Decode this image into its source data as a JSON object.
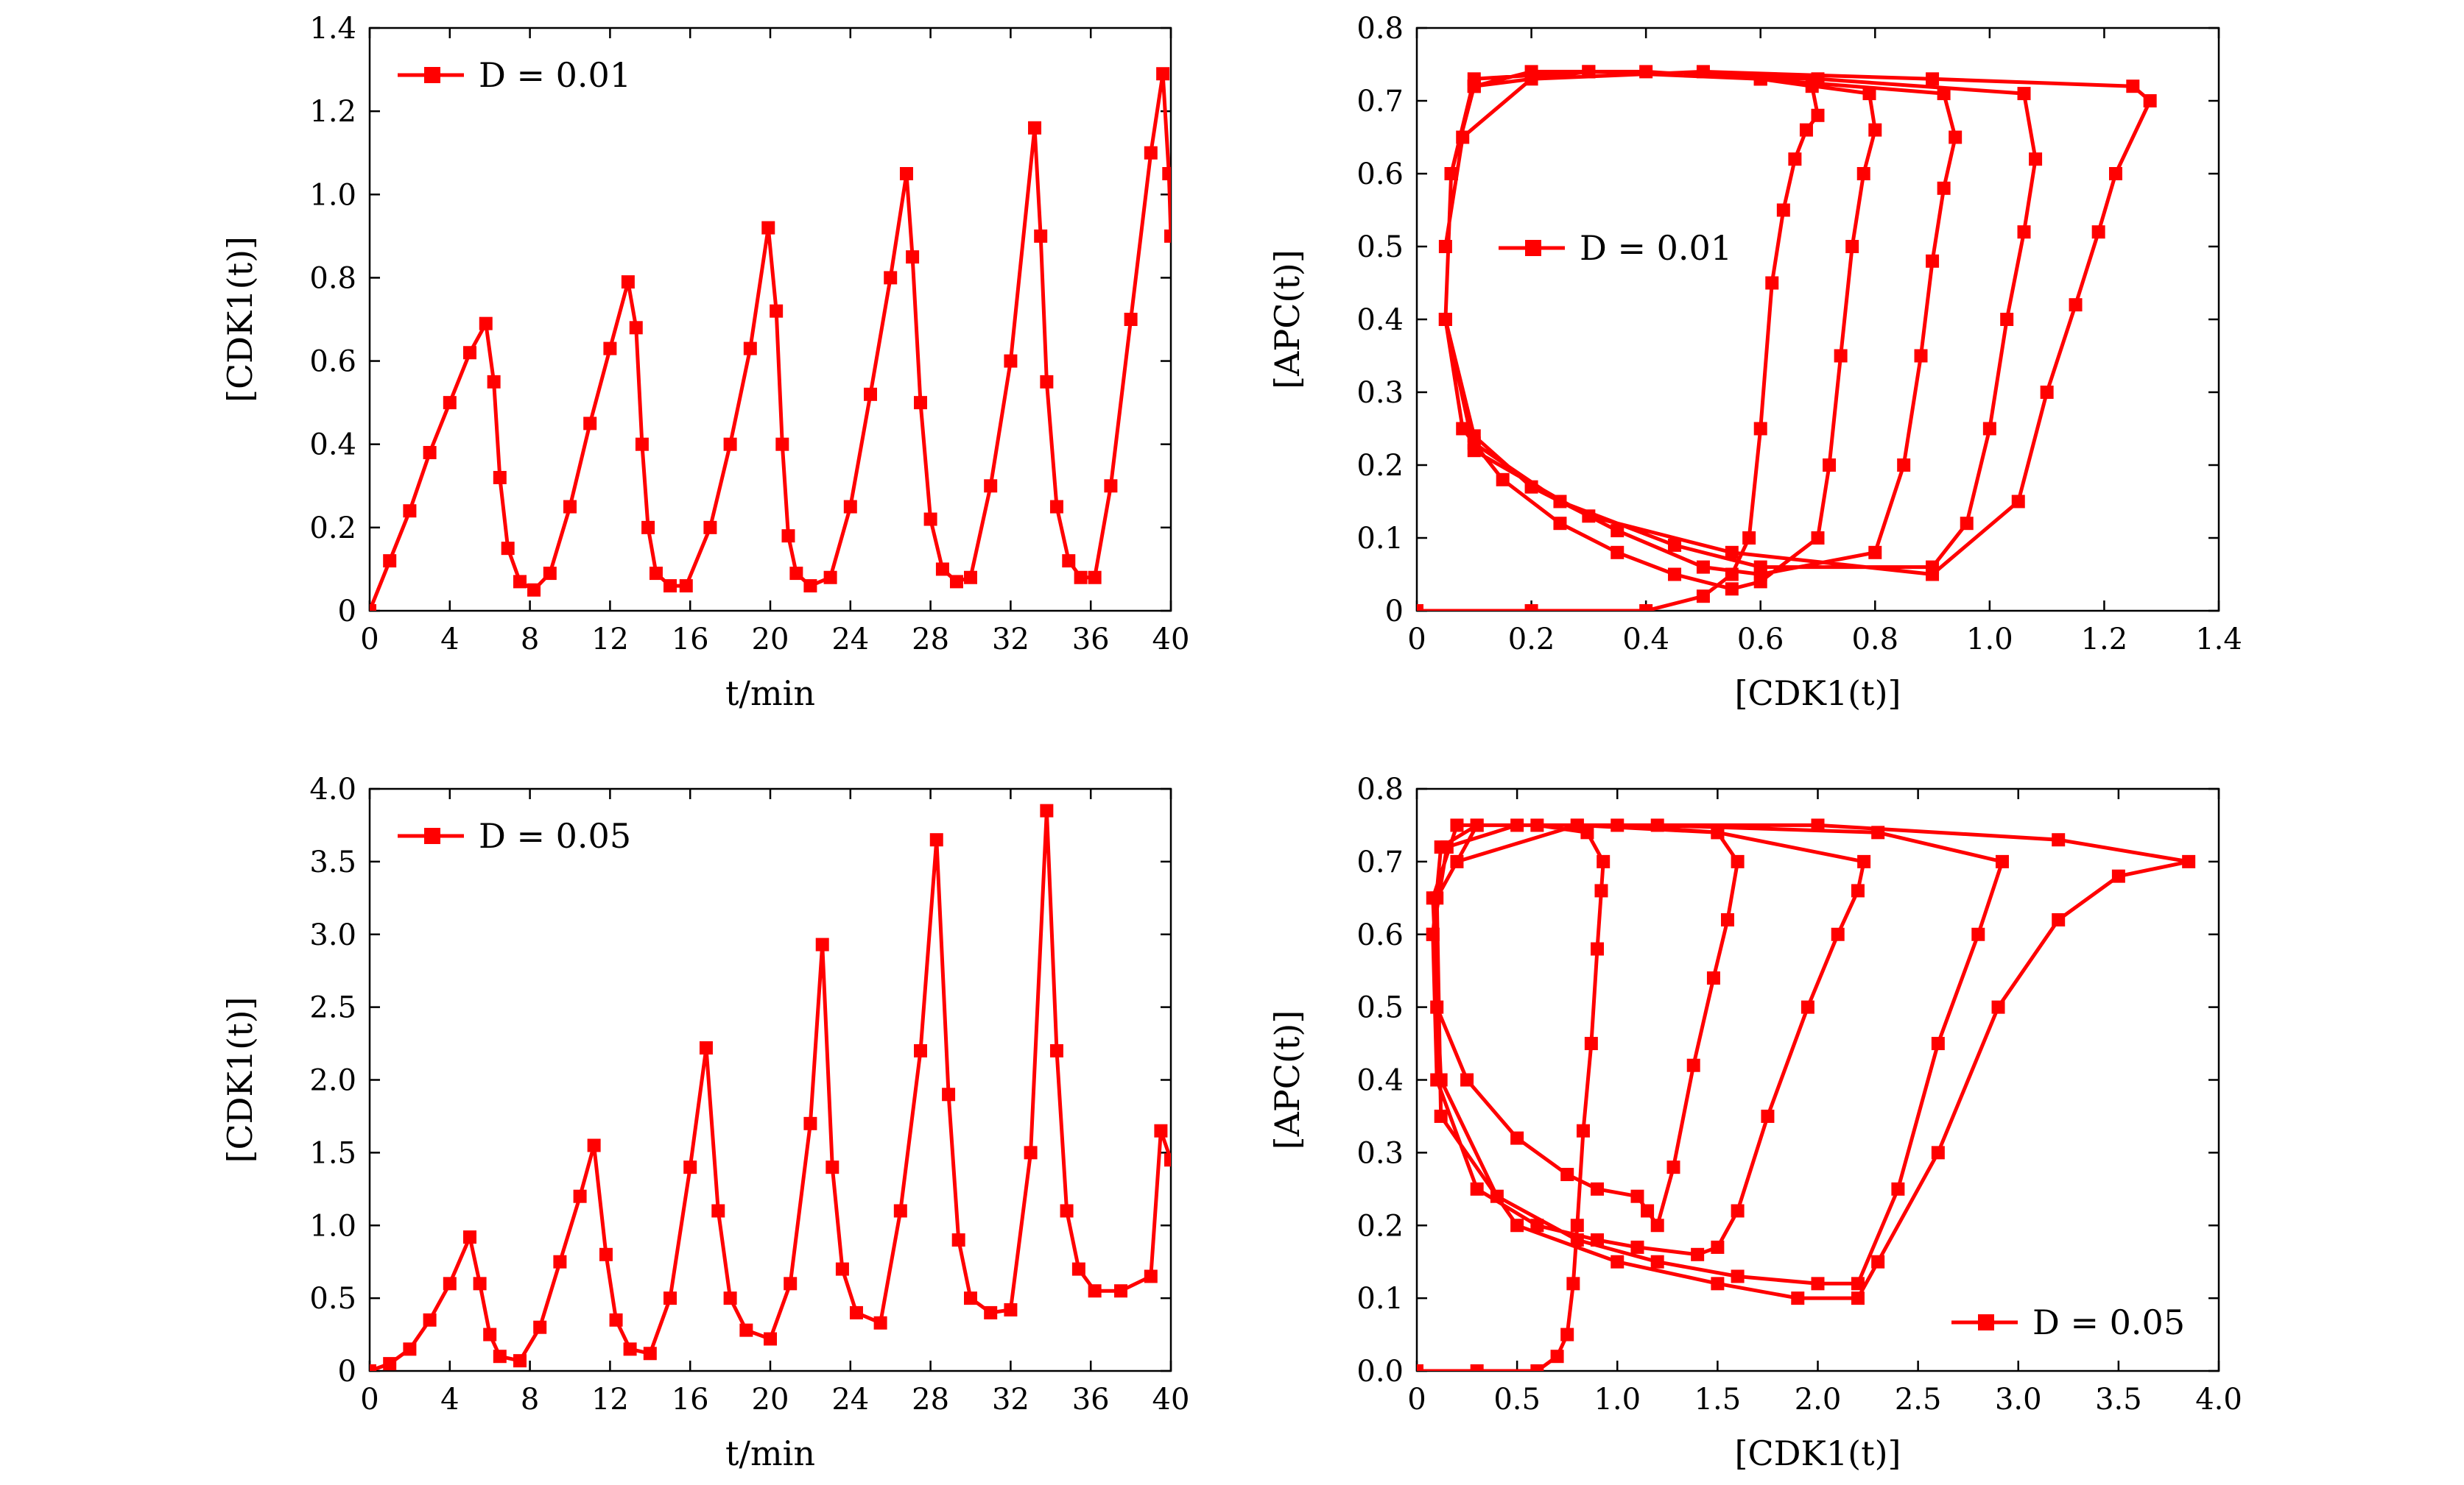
{
  "chart_data": [
    {
      "id": "p1",
      "type": "line",
      "xlabel": "t/min",
      "ylabel": "[CDK1(t)]",
      "xlim": [
        0,
        40
      ],
      "ylim": [
        0,
        1.4
      ],
      "xticks": [
        0,
        4,
        8,
        12,
        16,
        20,
        24,
        28,
        32,
        36,
        40
      ],
      "yticks": [
        0,
        0.2,
        0.4,
        0.6,
        0.8,
        1.0,
        1.2,
        1.4
      ],
      "xtick_labels": [
        "0",
        "4",
        "8",
        "12",
        "16",
        "20",
        "24",
        "28",
        "32",
        "36",
        "40"
      ],
      "ytick_labels": [
        "0",
        "0.2",
        "0.4",
        "0.6",
        "0.8",
        "1.0",
        "1.2",
        "1.4"
      ],
      "legend": {
        "label": "D = 0.01",
        "position": "top-left"
      },
      "series": [
        {
          "name": "D = 0.01",
          "x": [
            0,
            1,
            2,
            3,
            4,
            5,
            5.8,
            6.2,
            6.5,
            6.9,
            7.5,
            8.2,
            9,
            10,
            11,
            12,
            12.9,
            13.3,
            13.6,
            13.9,
            14.3,
            15,
            15.8,
            17,
            18,
            19,
            19.9,
            20.3,
            20.6,
            20.9,
            21.3,
            22,
            23,
            24,
            25,
            26,
            26.8,
            27.1,
            27.5,
            28,
            28.6,
            29.3,
            30,
            31,
            32,
            33.2,
            33.5,
            33.8,
            34.3,
            34.9,
            35.5,
            36.2,
            37,
            38,
            39,
            39.6,
            39.9,
            40
          ],
          "values": [
            0,
            0.12,
            0.24,
            0.38,
            0.5,
            0.62,
            0.69,
            0.55,
            0.32,
            0.15,
            0.07,
            0.05,
            0.09,
            0.25,
            0.45,
            0.63,
            0.79,
            0.68,
            0.4,
            0.2,
            0.09,
            0.06,
            0.06,
            0.2,
            0.4,
            0.63,
            0.92,
            0.72,
            0.4,
            0.18,
            0.09,
            0.06,
            0.08,
            0.25,
            0.52,
            0.8,
            1.05,
            0.85,
            0.5,
            0.22,
            0.1,
            0.07,
            0.08,
            0.3,
            0.6,
            1.16,
            0.9,
            0.55,
            0.25,
            0.12,
            0.08,
            0.08,
            0.3,
            0.7,
            1.1,
            1.29,
            1.05,
            0.9
          ]
        }
      ]
    },
    {
      "id": "p2",
      "type": "line",
      "xlabel": "[CDK1(t)]",
      "ylabel": "[APC(t)]",
      "xlim": [
        0,
        1.4
      ],
      "ylim": [
        0,
        0.8
      ],
      "xticks": [
        0,
        0.2,
        0.4,
        0.6,
        0.8,
        1.0,
        1.2,
        1.4
      ],
      "yticks": [
        0,
        0.1,
        0.2,
        0.3,
        0.4,
        0.5,
        0.6,
        0.7,
        0.8
      ],
      "xtick_labels": [
        "0",
        "0.2",
        "0.4",
        "0.6",
        "0.8",
        "1.0",
        "1.2",
        "1.4"
      ],
      "ytick_labels": [
        "0",
        "0.1",
        "0.2",
        "0.3",
        "0.4",
        "0.5",
        "0.6",
        "0.7",
        "0.8"
      ],
      "legend": {
        "label": "D = 0.01",
        "position": "middle-left"
      },
      "series": [
        {
          "name": "D = 0.01",
          "x": [
            0,
            0.2,
            0.4,
            0.5,
            0.55,
            0.58,
            0.6,
            0.62,
            0.64,
            0.66,
            0.68,
            0.7,
            0.69,
            0.6,
            0.4,
            0.2,
            0.1,
            0.06,
            0.05,
            0.08,
            0.15,
            0.25,
            0.35,
            0.45,
            0.55,
            0.6,
            0.7,
            0.72,
            0.74,
            0.76,
            0.78,
            0.8,
            0.79,
            0.6,
            0.3,
            0.1,
            0.06,
            0.05,
            0.1,
            0.2,
            0.35,
            0.5,
            0.6,
            0.8,
            0.85,
            0.88,
            0.9,
            0.92,
            0.94,
            0.92,
            0.6,
            0.3,
            0.1,
            0.06,
            0.05,
            0.1,
            0.25,
            0.45,
            0.6,
            0.9,
            0.96,
            1.0,
            1.03,
            1.06,
            1.08,
            1.06,
            0.7,
            0.3,
            0.1,
            0.06,
            0.05,
            0.1,
            0.3,
            0.55,
            0.9,
            1.05,
            1.1,
            1.15,
            1.19,
            1.22,
            1.28,
            1.25,
            0.9,
            0.5,
            0.2,
            0.08,
            0.05
          ],
          "values": [
            0,
            0,
            0,
            0.02,
            0.05,
            0.1,
            0.25,
            0.45,
            0.55,
            0.62,
            0.66,
            0.68,
            0.72,
            0.73,
            0.74,
            0.74,
            0.72,
            0.6,
            0.4,
            0.25,
            0.18,
            0.12,
            0.08,
            0.05,
            0.03,
            0.04,
            0.1,
            0.2,
            0.35,
            0.5,
            0.6,
            0.66,
            0.71,
            0.73,
            0.74,
            0.73,
            0.6,
            0.4,
            0.24,
            0.17,
            0.11,
            0.06,
            0.05,
            0.08,
            0.2,
            0.35,
            0.48,
            0.58,
            0.65,
            0.71,
            0.73,
            0.74,
            0.72,
            0.6,
            0.4,
            0.23,
            0.15,
            0.09,
            0.06,
            0.06,
            0.12,
            0.25,
            0.4,
            0.52,
            0.62,
            0.71,
            0.73,
            0.74,
            0.72,
            0.6,
            0.4,
            0.22,
            0.13,
            0.08,
            0.05,
            0.15,
            0.3,
            0.42,
            0.52,
            0.6,
            0.7,
            0.72,
            0.73,
            0.74,
            0.73,
            0.65,
            0.5
          ]
        }
      ]
    },
    {
      "id": "p3",
      "type": "line",
      "xlabel": "t/min",
      "ylabel": "[CDK1(t)]",
      "xlim": [
        0,
        40
      ],
      "ylim": [
        0,
        4.0
      ],
      "xticks": [
        0,
        4,
        8,
        12,
        16,
        20,
        24,
        28,
        32,
        36,
        40
      ],
      "yticks": [
        0,
        0.5,
        1.0,
        1.5,
        2.0,
        2.5,
        3.0,
        3.5,
        4.0
      ],
      "xtick_labels": [
        "0",
        "4",
        "8",
        "12",
        "16",
        "20",
        "24",
        "28",
        "32",
        "36",
        "40"
      ],
      "ytick_labels": [
        "0",
        "0.5",
        "1.0",
        "1.5",
        "2.0",
        "2.5",
        "3.0",
        "3.5",
        "4.0"
      ],
      "legend": {
        "label": "D = 0.05",
        "position": "top-left"
      },
      "series": [
        {
          "name": "D = 0.05",
          "x": [
            0,
            1,
            2,
            3,
            4,
            5,
            5.5,
            6,
            6.5,
            7.5,
            8.5,
            9.5,
            10.5,
            11.2,
            11.8,
            12.3,
            13,
            14,
            15,
            16,
            16.8,
            17.4,
            18,
            18.8,
            20,
            21,
            22,
            22.6,
            23.1,
            23.6,
            24.3,
            25.5,
            26.5,
            27.5,
            28.3,
            28.9,
            29.4,
            30,
            31,
            32,
            33,
            33.8,
            34.3,
            34.8,
            35.4,
            36.2,
            37.5,
            39,
            39.5,
            40
          ],
          "values": [
            0,
            0.05,
            0.15,
            0.35,
            0.6,
            0.92,
            0.6,
            0.25,
            0.1,
            0.07,
            0.3,
            0.75,
            1.2,
            1.55,
            0.8,
            0.35,
            0.15,
            0.12,
            0.5,
            1.4,
            2.22,
            1.1,
            0.5,
            0.28,
            0.22,
            0.6,
            1.7,
            2.93,
            1.4,
            0.7,
            0.4,
            0.33,
            1.1,
            2.2,
            3.65,
            1.9,
            0.9,
            0.5,
            0.4,
            0.42,
            1.5,
            3.85,
            2.2,
            1.1,
            0.7,
            0.55,
            0.55,
            0.65,
            1.65,
            1.45
          ]
        }
      ]
    },
    {
      "id": "p4",
      "type": "line",
      "xlabel": "[CDK1(t)]",
      "ylabel": "[APC(t)]",
      "xlim": [
        0,
        4.0
      ],
      "ylim": [
        0,
        0.8
      ],
      "xticks": [
        0,
        0.5,
        1.0,
        1.5,
        2.0,
        2.5,
        3.0,
        3.5,
        4.0
      ],
      "yticks": [
        0,
        0.1,
        0.2,
        0.3,
        0.4,
        0.5,
        0.6,
        0.7,
        0.8
      ],
      "xtick_labels": [
        "0",
        "0.5",
        "1.0",
        "1.5",
        "2.0",
        "2.5",
        "3.0",
        "3.5",
        "4.0"
      ],
      "ytick_labels": [
        "0.0",
        "0.1",
        "0.2",
        "0.3",
        "0.4",
        "0.5",
        "0.6",
        "0.7",
        "0.8"
      ],
      "legend": {
        "label": "D = 0.05",
        "position": "bottom-right"
      },
      "series": [
        {
          "name": "D = 0.05",
          "x": [
            0,
            0.3,
            0.6,
            0.7,
            0.75,
            0.78,
            0.8,
            0.83,
            0.87,
            0.9,
            0.92,
            0.93,
            0.85,
            0.6,
            0.3,
            0.12,
            0.08,
            0.1,
            0.25,
            0.5,
            0.75,
            0.9,
            1.1,
            1.15,
            1.2,
            1.28,
            1.38,
            1.48,
            1.55,
            1.6,
            1.5,
            1.0,
            0.5,
            0.15,
            0.08,
            0.1,
            0.3,
            0.6,
            0.9,
            1.1,
            1.4,
            1.5,
            1.6,
            1.75,
            1.95,
            2.1,
            2.2,
            2.23,
            1.5,
            0.8,
            0.2,
            0.08,
            0.12,
            0.4,
            0.8,
            1.2,
            1.6,
            2.0,
            2.2,
            2.4,
            2.6,
            2.8,
            2.92,
            2.3,
            1.2,
            0.3,
            0.1,
            0.12,
            0.5,
            1.0,
            1.5,
            1.9,
            2.2,
            2.3,
            2.6,
            2.9,
            3.2,
            3.5,
            3.85,
            3.2,
            2.0,
            0.8,
            0.2
          ],
          "values": [
            0,
            0,
            0,
            0.02,
            0.05,
            0.12,
            0.2,
            0.33,
            0.45,
            0.58,
            0.66,
            0.7,
            0.74,
            0.75,
            0.75,
            0.72,
            0.6,
            0.5,
            0.4,
            0.32,
            0.27,
            0.25,
            0.24,
            0.22,
            0.2,
            0.28,
            0.42,
            0.54,
            0.62,
            0.7,
            0.74,
            0.75,
            0.75,
            0.72,
            0.6,
            0.4,
            0.25,
            0.2,
            0.18,
            0.17,
            0.16,
            0.17,
            0.22,
            0.35,
            0.5,
            0.6,
            0.66,
            0.7,
            0.74,
            0.75,
            0.75,
            0.65,
            0.4,
            0.24,
            0.18,
            0.15,
            0.13,
            0.12,
            0.12,
            0.25,
            0.45,
            0.6,
            0.7,
            0.74,
            0.75,
            0.75,
            0.65,
            0.35,
            0.2,
            0.15,
            0.12,
            0.1,
            0.1,
            0.15,
            0.3,
            0.5,
            0.62,
            0.68,
            0.7,
            0.73,
            0.75,
            0.75,
            0.7
          ]
        }
      ]
    }
  ]
}
